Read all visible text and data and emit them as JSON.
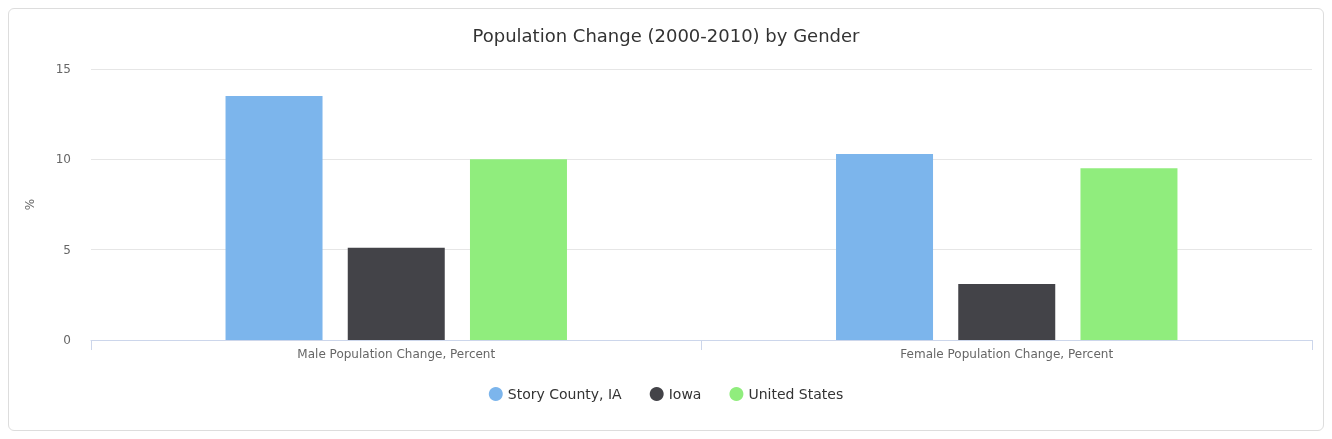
{
  "chart_data": {
    "type": "bar",
    "title": "Population Change (2000-2010) by Gender",
    "ylabel": "%",
    "categories": [
      "Male Population Change, Percent",
      "Female Population Change, Percent"
    ],
    "series": [
      {
        "name": "Story County, IA",
        "color": "#7cb5ec",
        "values": [
          13.5,
          10.3
        ]
      },
      {
        "name": "Iowa",
        "color": "#434348",
        "values": [
          5.1,
          3.1
        ]
      },
      {
        "name": "United States",
        "color": "#90ed7d",
        "values": [
          10,
          9.5
        ]
      }
    ],
    "ylim": [
      0,
      15
    ],
    "yticks": [
      0,
      5,
      10,
      15
    ],
    "grid": "y",
    "legend": "bottom"
  }
}
